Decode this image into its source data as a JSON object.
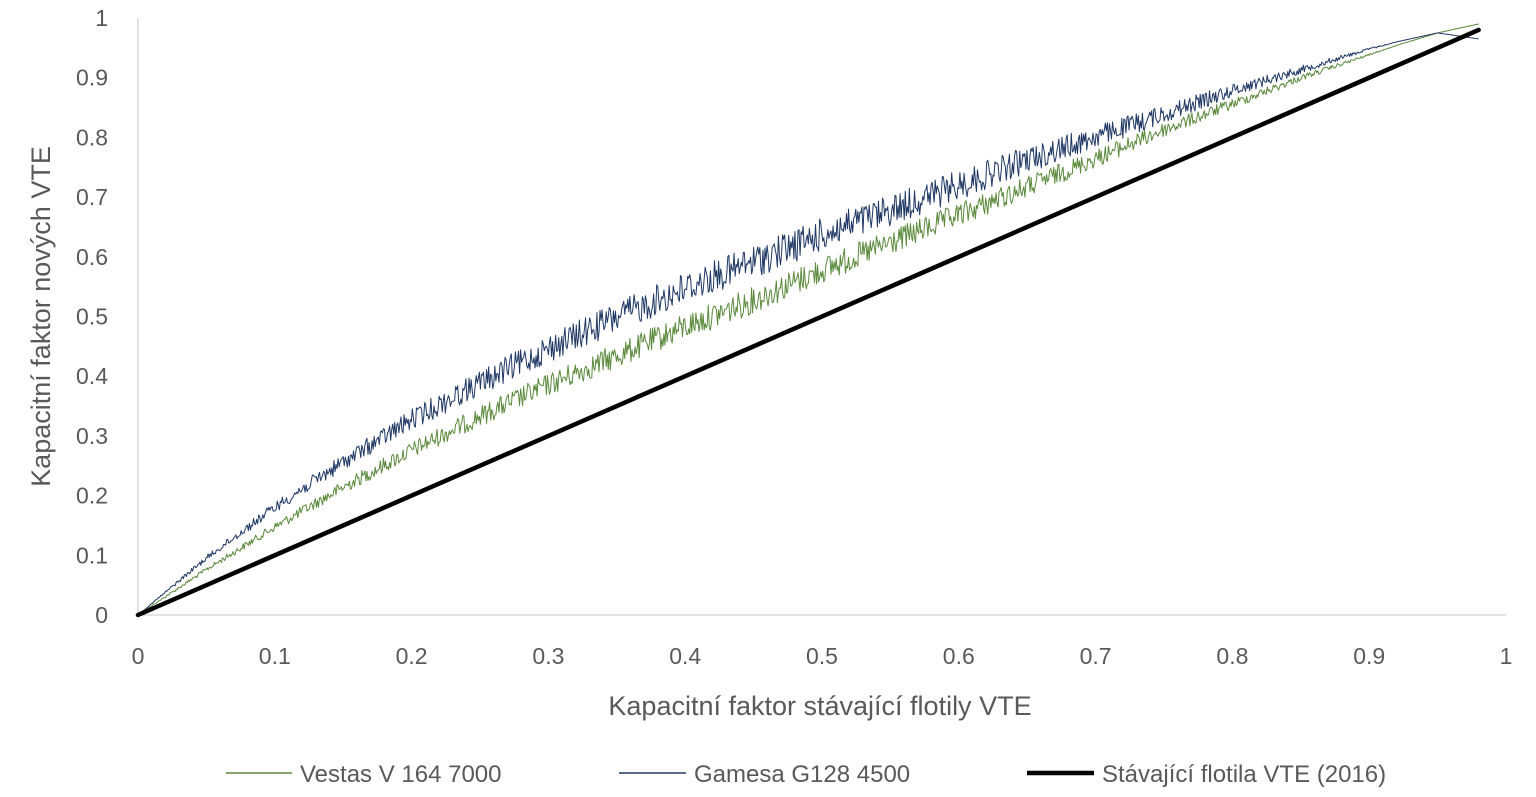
{
  "chart_data": {
    "type": "line",
    "title": "",
    "xlabel": "Kapacitní faktor stávající flotily VTE",
    "ylabel": "Kapacitní faktor nových VTE",
    "xlim": [
      0,
      1
    ],
    "ylim": [
      0,
      1
    ],
    "x_ticks": [
      "0",
      "0.1",
      "0.2",
      "0.3",
      "0.4",
      "0.5",
      "0.6",
      "0.7",
      "0.8",
      "0.9",
      "1"
    ],
    "y_ticks": [
      "0",
      "0.1",
      "0.2",
      "0.3",
      "0.4",
      "0.5",
      "0.6",
      "0.7",
      "0.8",
      "0.9",
      "1"
    ],
    "grid": false,
    "legend_position": "bottom",
    "series": [
      {
        "name": "Vestas V 164 7000",
        "color": "#5b8a3c",
        "line": "thin-noisy",
        "x": [
          0,
          0.05,
          0.1,
          0.15,
          0.2,
          0.25,
          0.3,
          0.35,
          0.4,
          0.45,
          0.5,
          0.55,
          0.6,
          0.65,
          0.7,
          0.75,
          0.8,
          0.85,
          0.9,
          0.95,
          0.98
        ],
        "y": [
          0,
          0.08,
          0.155,
          0.225,
          0.29,
          0.35,
          0.405,
          0.455,
          0.505,
          0.55,
          0.6,
          0.645,
          0.69,
          0.735,
          0.78,
          0.825,
          0.865,
          0.905,
          0.94,
          0.975,
          0.99
        ]
      },
      {
        "name": "Gamesa G128 4500",
        "color": "#1f3864",
        "line": "thin-noisy",
        "x": [
          0,
          0.05,
          0.1,
          0.15,
          0.2,
          0.25,
          0.3,
          0.35,
          0.4,
          0.45,
          0.5,
          0.55,
          0.6,
          0.65,
          0.7,
          0.75,
          0.8,
          0.85,
          0.9,
          0.95,
          0.98
        ],
        "y": [
          0,
          0.1,
          0.19,
          0.27,
          0.345,
          0.41,
          0.47,
          0.525,
          0.575,
          0.62,
          0.665,
          0.705,
          0.745,
          0.785,
          0.82,
          0.855,
          0.89,
          0.92,
          0.95,
          0.975,
          0.965
        ]
      },
      {
        "name": "Stávající flotila VTE (2016)",
        "color": "#000000",
        "line": "thick",
        "x": [
          0,
          0.98
        ],
        "y": [
          0,
          0.98
        ]
      }
    ]
  }
}
